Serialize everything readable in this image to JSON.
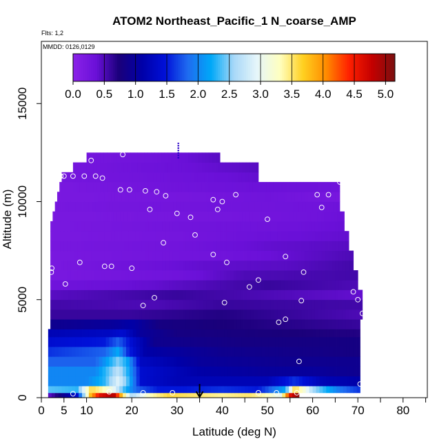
{
  "chart_data": {
    "type": "heatmap",
    "title": "ATOM2 Northeast_Pacific_1 N_coarse_AMP",
    "flights_note": "Flts: 1,2",
    "date_note": "MMDD: 0126,0129",
    "xlabel": "Latitude (deg N)",
    "ylabel": "Altitude (m)",
    "xlim": [
      0,
      85
    ],
    "ylim": [
      0,
      17500
    ],
    "x_ticks": [
      0,
      5,
      10,
      20,
      30,
      40,
      50,
      60,
      70,
      80
    ],
    "x_minor_ticks": [
      35,
      45,
      55,
      65,
      75,
      85
    ],
    "y_ticks": [
      0,
      5000,
      10000,
      15000
    ],
    "colorbar": {
      "min": 0.0,
      "max": 5.15,
      "ticks": [
        "0.0",
        "0.5",
        "1.0",
        "1.5",
        "2.0",
        "2.5",
        "3.0",
        "3.5",
        "4.0",
        "4.5",
        "5.0"
      ],
      "tick_values": [
        0,
        0.5,
        1.0,
        1.5,
        2.0,
        2.5,
        3.0,
        3.5,
        4.0,
        4.5,
        5.0
      ],
      "segments": 10,
      "colors": [
        "#8a22e8",
        "#6a10d8",
        "#1a007a",
        "#0000a8",
        "#0010d8",
        "#1f6cf0",
        "#00a8f8",
        "#a8d8f8",
        "#e6f6fa",
        "#ffffc0",
        "#ffd020",
        "#ff8c00",
        "#ff2000",
        "#c40000",
        "#7a1010"
      ]
    },
    "layers": [
      {
        "alt": [
          0,
          250
        ],
        "x0": 1.5,
        "x1": 57,
        "profile": [
          [
            1.5,
            0.4
          ],
          [
            8,
            1.4
          ],
          [
            11,
            3.9
          ],
          [
            13,
            4.6
          ],
          [
            16,
            4.9
          ],
          [
            18,
            3.6
          ],
          [
            20,
            2.6
          ],
          [
            24,
            3.3
          ],
          [
            28,
            3.6
          ],
          [
            34,
            3.5
          ],
          [
            40,
            3.4
          ],
          [
            46,
            3.5
          ],
          [
            50,
            3.3
          ],
          [
            53,
            3.0
          ],
          [
            55,
            4.6
          ],
          [
            57,
            5.1
          ]
        ]
      },
      {
        "alt": [
          250,
          600
        ],
        "x0": 1.5,
        "x1": 70.5,
        "profile": [
          [
            1.5,
            2.4
          ],
          [
            8,
            2.3
          ],
          [
            11,
            3.6
          ],
          [
            14,
            3.3
          ],
          [
            16,
            3.0
          ],
          [
            18,
            2.4
          ],
          [
            21,
            1.8
          ],
          [
            26,
            1.5
          ],
          [
            32,
            1.5
          ],
          [
            40,
            1.6
          ],
          [
            48,
            1.5
          ],
          [
            54,
            2.2
          ],
          [
            56,
            3.6
          ],
          [
            58,
            3.2
          ],
          [
            60,
            2.6
          ],
          [
            66,
            1.9
          ],
          [
            70.5,
            1.6
          ]
        ]
      },
      {
        "alt": [
          600,
          1100
        ],
        "x0": 1.5,
        "x1": 70.5,
        "profile": [
          [
            1.5,
            2.0
          ],
          [
            10,
            2.0
          ],
          [
            14,
            2.3
          ],
          [
            17,
            2.9
          ],
          [
            19,
            2.4
          ],
          [
            22,
            1.4
          ],
          [
            30,
            1.2
          ],
          [
            40,
            1.2
          ],
          [
            50,
            1.2
          ],
          [
            56,
            1.6
          ],
          [
            62,
            1.2
          ],
          [
            70.5,
            1.1
          ]
        ]
      },
      {
        "alt": [
          1100,
          1600
        ],
        "x0": 1.5,
        "x1": 70.5,
        "profile": [
          [
            1.5,
            2.0
          ],
          [
            12,
            2.0
          ],
          [
            17,
            2.7
          ],
          [
            19,
            2.3
          ],
          [
            22,
            1.4
          ],
          [
            35,
            1.1
          ],
          [
            50,
            1.0
          ],
          [
            60,
            1.0
          ],
          [
            70.5,
            0.9
          ]
        ]
      },
      {
        "alt": [
          1600,
          2100
        ],
        "x0": 1.5,
        "x1": 70.5,
        "profile": [
          [
            1.5,
            1.8
          ],
          [
            12,
            1.8
          ],
          [
            17,
            2.5
          ],
          [
            19,
            2.2
          ],
          [
            22,
            1.3
          ],
          [
            35,
            1.0
          ],
          [
            55,
            0.9
          ],
          [
            70.5,
            0.9
          ]
        ]
      },
      {
        "alt": [
          2100,
          2600
        ],
        "x0": 1.5,
        "x1": 70.5,
        "profile": [
          [
            1.5,
            1.6
          ],
          [
            14,
            1.8
          ],
          [
            17,
            2.2
          ],
          [
            19,
            1.6
          ],
          [
            23,
            1.1
          ],
          [
            40,
            0.9
          ],
          [
            70.5,
            0.8
          ]
        ]
      },
      {
        "alt": [
          2600,
          3100
        ],
        "x0": 1.5,
        "x1": 70.5,
        "profile": [
          [
            1.5,
            1.4
          ],
          [
            14,
            1.5
          ],
          [
            17,
            1.8
          ],
          [
            20,
            1.4
          ],
          [
            25,
            0.9
          ],
          [
            45,
            0.8
          ],
          [
            70.5,
            0.8
          ]
        ]
      },
      {
        "alt": [
          3100,
          3500
        ],
        "x0": 1.5,
        "x1": 70.5,
        "profile": [
          [
            1.5,
            1.2
          ],
          [
            15,
            1.3
          ],
          [
            18,
            1.4
          ],
          [
            22,
            1.0
          ],
          [
            30,
            0.8
          ],
          [
            70.5,
            0.7
          ]
        ]
      },
      {
        "alt": [
          3500,
          4000
        ],
        "x0": 2.0,
        "x1": 70.5,
        "profile": [
          [
            2,
            0.9
          ],
          [
            16,
            1.0
          ],
          [
            20,
            1.1
          ],
          [
            26,
            0.8
          ],
          [
            70.5,
            0.6
          ]
        ]
      },
      {
        "alt": [
          4000,
          4500
        ],
        "x0": 2.0,
        "x1": 71,
        "profile": [
          [
            2,
            0.6
          ],
          [
            20,
            0.6
          ],
          [
            40,
            0.7
          ],
          [
            71,
            0.5
          ]
        ]
      },
      {
        "alt": [
          4500,
          5000
        ],
        "x0": 2.0,
        "x1": 71,
        "profile": [
          [
            2,
            0.55
          ],
          [
            25,
            0.5
          ],
          [
            40,
            0.6
          ],
          [
            71,
            0.55
          ]
        ]
      },
      {
        "alt": [
          5000,
          5500
        ],
        "x0": 2.0,
        "x1": 71,
        "profile": [
          [
            2,
            0.45
          ],
          [
            30,
            0.6
          ],
          [
            50,
            0.5
          ],
          [
            71,
            0.4
          ]
        ]
      },
      {
        "alt": [
          5500,
          6000
        ],
        "x0": 2.0,
        "x1": 70,
        "profile": [
          [
            2,
            0.3
          ],
          [
            25,
            0.4
          ],
          [
            50,
            0.6
          ],
          [
            70,
            0.5
          ]
        ]
      },
      {
        "alt": [
          6000,
          6500
        ],
        "x0": 2.0,
        "x1": 70,
        "profile": [
          [
            2,
            0.2
          ],
          [
            30,
            0.3
          ],
          [
            45,
            0.5
          ],
          [
            70,
            0.55
          ]
        ]
      },
      {
        "alt": [
          6500,
          7000
        ],
        "x0": 2.0,
        "x1": 69,
        "profile": [
          [
            2,
            0.2
          ],
          [
            35,
            0.4
          ],
          [
            55,
            0.45
          ],
          [
            69,
            0.55
          ]
        ]
      },
      {
        "alt": [
          7000,
          7500
        ],
        "x0": 2.0,
        "x1": 69,
        "profile": [
          [
            2,
            0.2
          ],
          [
            40,
            0.3
          ],
          [
            55,
            0.4
          ],
          [
            69,
            0.5
          ]
        ]
      },
      {
        "alt": [
          7500,
          8000
        ],
        "x0": 2.0,
        "x1": 68,
        "profile": [
          [
            2,
            0.22
          ],
          [
            30,
            0.28
          ],
          [
            50,
            0.4
          ],
          [
            68,
            0.45
          ]
        ]
      },
      {
        "alt": [
          8000,
          8500
        ],
        "x0": 2.0,
        "x1": 68,
        "profile": [
          [
            2,
            0.2
          ],
          [
            30,
            0.25
          ],
          [
            50,
            0.35
          ],
          [
            68,
            0.4
          ]
        ]
      },
      {
        "alt": [
          8500,
          9000
        ],
        "x0": 2.0,
        "x1": 67,
        "profile": [
          [
            2,
            0.2
          ],
          [
            40,
            0.3
          ],
          [
            55,
            0.32
          ],
          [
            67,
            0.38
          ]
        ]
      },
      {
        "alt": [
          9000,
          9500
        ],
        "x0": 2.5,
        "x1": 67,
        "profile": [
          [
            2.5,
            0.2
          ],
          [
            40,
            0.25
          ],
          [
            60,
            0.3
          ],
          [
            67,
            0.35
          ]
        ]
      },
      {
        "alt": [
          9500,
          10000
        ],
        "x0": 3.0,
        "x1": 66,
        "profile": [
          [
            3,
            0.22
          ],
          [
            35,
            0.28
          ],
          [
            60,
            0.3
          ],
          [
            66,
            0.32
          ]
        ]
      },
      {
        "alt": [
          10000,
          10500
        ],
        "x0": 3.5,
        "x1": 66,
        "profile": [
          [
            3.5,
            0.2
          ],
          [
            35,
            0.25
          ],
          [
            50,
            0.3
          ],
          [
            66,
            0.22
          ]
        ]
      },
      {
        "alt": [
          10500,
          11000
        ],
        "x0": 4.0,
        "x1": 66,
        "profile": [
          [
            4,
            0.2
          ],
          [
            30,
            0.3
          ],
          [
            50,
            0.35
          ],
          [
            66,
            0.3
          ]
        ]
      },
      {
        "alt": [
          11000,
          11500
        ],
        "x0": 4.5,
        "x1": 48,
        "profile": [
          [
            4.5,
            0.25
          ],
          [
            25,
            0.3
          ],
          [
            48,
            0.4
          ]
        ]
      },
      {
        "alt": [
          11500,
          12000
        ],
        "x0": 7.0,
        "x1": 48,
        "profile": [
          [
            7,
            0.25
          ],
          [
            30,
            0.35
          ],
          [
            48,
            0.45
          ]
        ]
      },
      {
        "alt": [
          12000,
          12500
        ],
        "x0": 10.0,
        "x1": 39.5,
        "profile": [
          [
            10,
            0.25
          ],
          [
            25,
            0.3
          ],
          [
            39.5,
            0.45
          ]
        ]
      }
    ],
    "observations": [
      [
        2.2,
        6400
      ],
      [
        2.3,
        6600
      ],
      [
        5.3,
        5800
      ],
      [
        8.5,
        6900
      ],
      [
        4.3,
        11300
      ],
      [
        5.0,
        11300
      ],
      [
        7.0,
        11300
      ],
      [
        9.5,
        11300
      ],
      [
        12.0,
        11300
      ],
      [
        13.5,
        11200
      ],
      [
        11.0,
        12100
      ],
      [
        18.0,
        12400
      ],
      [
        17.5,
        10600
      ],
      [
        19.5,
        10600
      ],
      [
        23.0,
        10550
      ],
      [
        25.5,
        10500
      ],
      [
        27.5,
        10300
      ],
      [
        24.0,
        9600
      ],
      [
        30.0,
        9400
      ],
      [
        33.0,
        9200
      ],
      [
        34.0,
        8300
      ],
      [
        38.0,
        10100
      ],
      [
        40.0,
        10000
      ],
      [
        39.0,
        9600
      ],
      [
        43.0,
        10350
      ],
      [
        50.0,
        9100
      ],
      [
        27.0,
        7900
      ],
      [
        38.0,
        7300
      ],
      [
        41.0,
        6900
      ],
      [
        14.0,
        6700
      ],
      [
        15.5,
        6700
      ],
      [
        20.0,
        6600
      ],
      [
        25.0,
        5100
      ],
      [
        22.5,
        4700
      ],
      [
        40.5,
        4850
      ],
      [
        46.0,
        5650
      ],
      [
        48.0,
        6000
      ],
      [
        54.0,
        7200
      ],
      [
        58.0,
        6400
      ],
      [
        61.0,
        10350
      ],
      [
        62.0,
        9700
      ],
      [
        63.5,
        10350
      ],
      [
        66.0,
        11000
      ],
      [
        67.5,
        10950
      ],
      [
        54.0,
        4000
      ],
      [
        52.5,
        3850
      ],
      [
        57.5,
        4950
      ],
      [
        69.0,
        5400
      ],
      [
        70.0,
        5000
      ],
      [
        71.0,
        4300
      ],
      [
        57.0,
        1850
      ],
      [
        70.5,
        700
      ],
      [
        15.0,
        300
      ],
      [
        22.5,
        250
      ],
      [
        29.0,
        250
      ],
      [
        48.0,
        250
      ],
      [
        52.0,
        250
      ],
      [
        56.5,
        250
      ],
      [
        7.0,
        200
      ]
    ],
    "marker_arrow": {
      "x": 35,
      "y_top": 700,
      "y_bottom": 0
    },
    "marker_tick_top": {
      "x": 30.3,
      "y0": 12200,
      "y1": 13000
    }
  }
}
